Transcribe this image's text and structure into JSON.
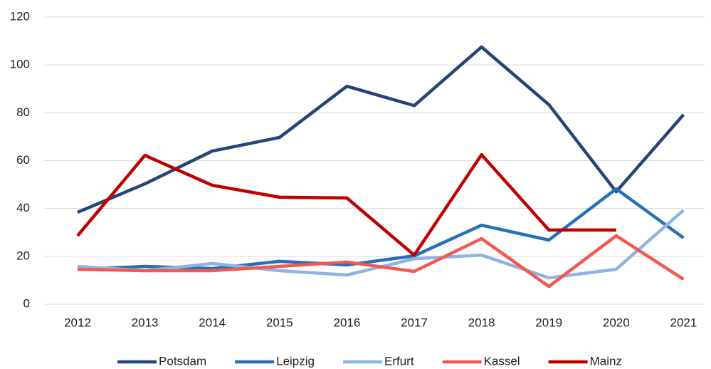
{
  "chart_data": {
    "type": "line",
    "categories": [
      "2012",
      "2013",
      "2014",
      "2015",
      "2016",
      "2017",
      "2018",
      "2019",
      "2020",
      "2021"
    ],
    "series": [
      {
        "name": "Potsdam",
        "color": "#264478",
        "values": [
          38.4,
          50.3,
          64,
          69.7,
          91.1,
          83,
          107.5,
          83.4,
          47,
          79.2
        ]
      },
      {
        "name": "Leipzig",
        "color": "#2471b8",
        "values": [
          14.6,
          15.8,
          14.9,
          17.9,
          16.4,
          20.2,
          33,
          26.8,
          48.2,
          27.7
        ]
      },
      {
        "name": "Erfurt",
        "color": "#8fb4e3",
        "values": [
          15.8,
          14,
          17,
          14,
          12.2,
          19,
          20.5,
          11,
          14.6,
          39.3
        ]
      },
      {
        "name": "Kassel",
        "color": "#f4574f",
        "values": [
          14.6,
          14,
          14,
          15.8,
          17.6,
          13.7,
          27.4,
          7.4,
          28.6,
          10.4
        ]
      },
      {
        "name": "Mainz",
        "color": "#c00000",
        "values": [
          28.6,
          62.2,
          49.7,
          44.7,
          44.4,
          20.5,
          62.5,
          31,
          31,
          null
        ]
      }
    ],
    "ylim": [
      0,
      120
    ],
    "yticks": [
      0,
      20,
      40,
      60,
      80,
      100,
      120
    ],
    "grid": true,
    "legend": "bottom"
  }
}
